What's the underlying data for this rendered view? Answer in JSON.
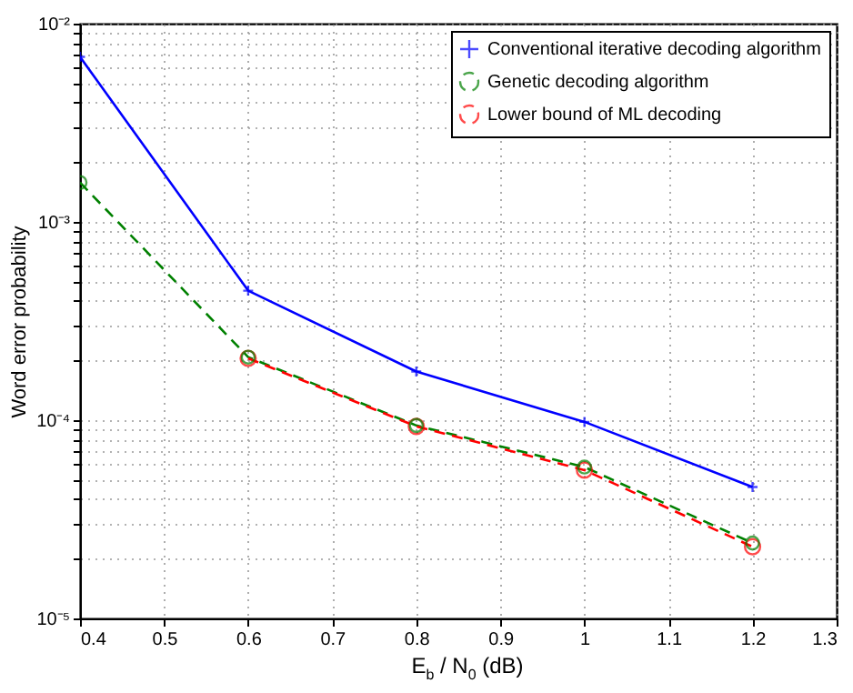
{
  "chart_data": {
    "type": "line",
    "xlabel": "E$_{b}$ / N$_{0}$ (dB)",
    "ylabel": "Word error probability",
    "x": [
      0.4,
      0.6,
      0.8,
      1.0,
      1.2
    ],
    "series": [
      {
        "name": "Conventional iterative decoding algorithm",
        "color": "#0000ff",
        "marker": "cross",
        "line_style": "solid",
        "values": [
          0.0068,
          0.00045,
          0.000176,
          9.8e-05,
          4.6e-05
        ]
      },
      {
        "name": "Genetic decoding algorithm",
        "color": "#008000",
        "marker": "circle",
        "line_style": "dashed",
        "values": [
          0.00158,
          0.000208,
          9.4e-05,
          5.8e-05,
          2.4e-05
        ]
      },
      {
        "name": "Lower bound of ML decoding",
        "color": "#ff0000",
        "marker": "circle",
        "line_style": "dashed",
        "values": [
          null,
          0.000205,
          9.3e-05,
          5.6e-05,
          2.3e-05
        ]
      }
    ],
    "xlim": [
      0.4,
      1.3
    ],
    "xticks": [
      0.4,
      0.5,
      0.6,
      0.7,
      0.8,
      0.9,
      1,
      1.1,
      1.2,
      1.3
    ],
    "ylim": [
      1e-05,
      0.01
    ],
    "yticks": [
      {
        "value": 1e-05,
        "label": "10⁻⁵"
      },
      {
        "value": 0.0001,
        "label": "10⁻⁴"
      },
      {
        "value": 0.001,
        "label": "10⁻³"
      },
      {
        "value": 0.01,
        "label": "10⁻²"
      }
    ],
    "log": "y",
    "grid": true,
    "legend": "top right"
  }
}
